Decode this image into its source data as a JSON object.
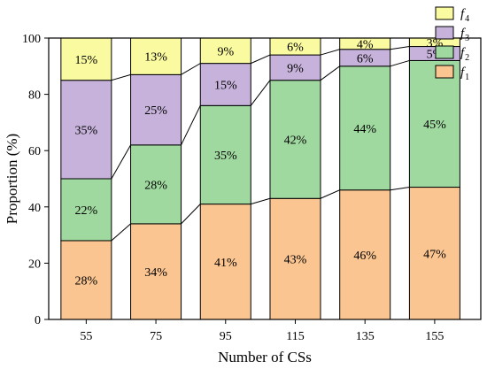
{
  "chart_data": {
    "type": "bar",
    "stacked": true,
    "categories": [
      "55",
      "75",
      "95",
      "115",
      "135",
      "155"
    ],
    "series": [
      {
        "name": "f1",
        "label_main": "f",
        "label_sub": "1",
        "color": "#FAC590",
        "values": [
          28,
          34,
          41,
          43,
          46,
          47
        ],
        "labels": [
          "28%",
          "34%",
          "41%",
          "43%",
          "46%",
          "47%"
        ]
      },
      {
        "name": "f2",
        "label_main": "f",
        "label_sub": "2",
        "color": "#A0D9A0",
        "values": [
          22,
          28,
          35,
          42,
          44,
          45
        ],
        "labels": [
          "22%",
          "28%",
          "35%",
          "42%",
          "44%",
          "45%"
        ]
      },
      {
        "name": "f3",
        "label_main": "f",
        "label_sub": "3",
        "color": "#C6B2DA",
        "values": [
          35,
          25,
          15,
          9,
          6,
          5
        ],
        "labels": [
          "35%",
          "25%",
          "15%",
          "9%",
          "6%",
          "5%"
        ]
      },
      {
        "name": "f4",
        "label_main": "f",
        "label_sub": "4",
        "color": "#FAFAA0",
        "values": [
          15,
          13,
          9,
          6,
          4,
          3
        ],
        "labels": [
          "15%",
          "13%",
          "9%",
          "6%",
          "4%",
          "3%"
        ]
      }
    ],
    "xlabel": "Number of CSs",
    "ylabel": "Proportion (%)",
    "ylim": [
      0,
      100
    ],
    "yticks": [
      0,
      20,
      40,
      60,
      80,
      100
    ],
    "connector_lines": true,
    "grid": false,
    "legend_position": "top-right"
  }
}
